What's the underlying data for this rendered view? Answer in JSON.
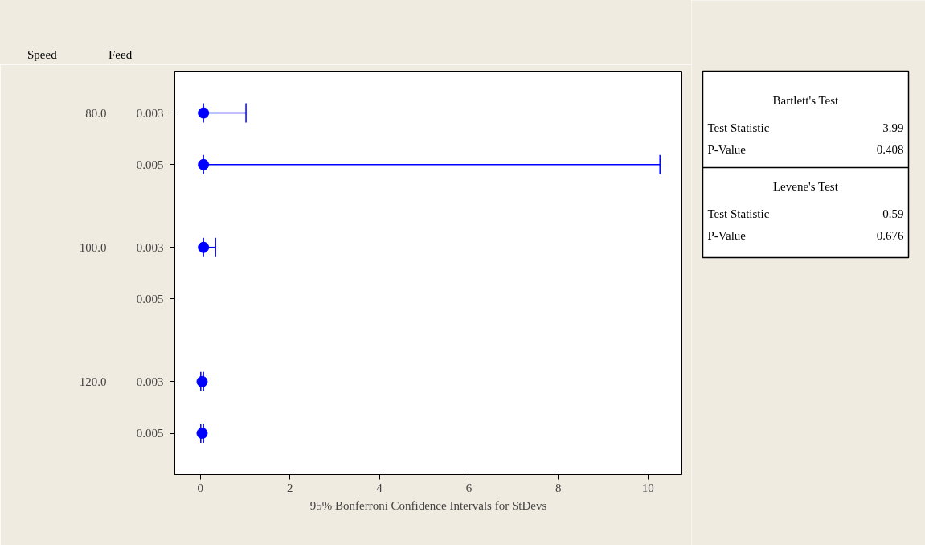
{
  "chart_data": {
    "type": "scatter",
    "orientation": "horizontal",
    "xlabel": "95% Bonferroni Confidence Intervals for StDevs",
    "categories": [
      "0.003",
      "0.005",
      "0.003",
      "0.005",
      "0.003",
      "0.005"
    ],
    "series": [
      {
        "color": "#0000ff",
        "values": [
          0.07,
          0.07,
          0.07,
          null,
          0.04,
          0.04
        ],
        "errors": [
          [
            0.07,
            1.02
          ],
          [
            0.07,
            10.27
          ],
          [
            0.07,
            0.34
          ],
          null,
          [
            0.01,
            0.07
          ],
          [
            0.01,
            0.07
          ]
        ]
      }
    ],
    "marker": "circle",
    "xlim": [
      -0.57,
      10.76
    ],
    "xticks": [
      0,
      2,
      4,
      6,
      8,
      10
    ],
    "grid": false,
    "annotations": [
      "Speed",
      "Feed",
      "80.0",
      "100.0",
      "120.0",
      "Bartlett's Test",
      "Test Statistic",
      "3.99",
      "P-Value",
      "0.408",
      "Levene's Test",
      "Test Statistic",
      "0.59",
      "P-Value",
      "0.676"
    ]
  }
}
